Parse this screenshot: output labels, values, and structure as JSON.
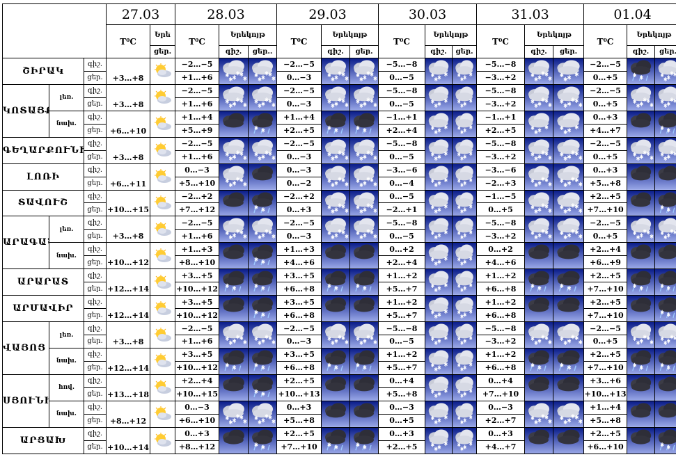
{
  "labels": {
    "temp": "T⁰C",
    "erek_short": "Երե",
    "erekoyt": "Երեկոյթ",
    "day": "ցեր.",
    "night": "գիշ.",
    "night_dot": "գիշ.",
    "day_dots": "ցեր..",
    "day_full": "ցեր."
  },
  "dates": [
    "27.03",
    "28.03",
    "29.03",
    "30.03",
    "31.03",
    "01.04"
  ],
  "icons": {
    "sunny": "sun-cloud-icon",
    "snow": "snow-cloud-icon",
    "heavy_snow": "heavy-snow-icon",
    "rain_snow": "rain-snow-icon",
    "cloud": "dark-cloud-icon"
  },
  "colors": {
    "icon_bg_top": "#0a1d8a",
    "icon_bg_bottom": "#9aa8e8"
  },
  "rows": [
    {
      "region": "ՇԻՐԱԿ",
      "sub": "",
      "d0": "+3…+8",
      "n": [
        "−2…−5",
        "−2…−5",
        "−5…−8",
        "−5…−8",
        "−2…−5"
      ],
      "d": [
        "+1…+6",
        "0…−3",
        "0…−5",
        "−3…+2",
        "0…+5"
      ],
      "ico": [
        [
          "heavy_snow",
          "heavy_snow"
        ],
        [
          "heavy_snow",
          "heavy_snow"
        ],
        [
          "snow",
          "snow"
        ],
        [
          "heavy_snow",
          "snow"
        ],
        [
          "rain_snow",
          "heavy_snow"
        ]
      ]
    },
    {
      "region": "ԿՈՏԱՅՔ",
      "sub": "լեռ.",
      "d0": "+3…+8",
      "n": [
        "−2…−5",
        "−2…−5",
        "−5…−8",
        "−5…−8",
        "−2…−5"
      ],
      "d": [
        "+1…+6",
        "0…−3",
        "0…−5",
        "−3…+2",
        "0…+5"
      ],
      "ico": [
        [
          "heavy_snow",
          "heavy_snow"
        ],
        [
          "heavy_snow",
          "heavy_snow"
        ],
        [
          "snow",
          "snow"
        ],
        [
          "heavy_snow",
          "heavy_snow"
        ],
        [
          "heavy_snow",
          "heavy_snow"
        ]
      ]
    },
    {
      "region": "",
      "sub": "նախ.",
      "d0": "+6…+10",
      "n": [
        "+1…+4",
        "+1…+4",
        "−1…+1",
        "−1…+1",
        "0…+3"
      ],
      "d": [
        "+5…+9",
        "+2…+5",
        "+2…+4",
        "+2…+5",
        "+4…+7"
      ],
      "ico": [
        [
          "cloud",
          "rain_snow"
        ],
        [
          "rain_snow",
          "rain_snow"
        ],
        [
          "snow",
          "snow"
        ],
        [
          "snow",
          "snow"
        ],
        [
          "cloud",
          "rain_snow"
        ]
      ]
    },
    {
      "region": "ԳԵՂԱՐՔՈՒՆԻՔ",
      "sub": "",
      "d0": "+3…+8",
      "n": [
        "−2…−5",
        "−2…−5",
        "−5…−8",
        "−5…−8",
        "−2…−5"
      ],
      "d": [
        "+1…+6",
        "0…−3",
        "0…−5",
        "−3…+2",
        "0…+5"
      ],
      "ico": [
        [
          "heavy_snow",
          "heavy_snow"
        ],
        [
          "heavy_snow",
          "heavy_snow"
        ],
        [
          "snow",
          "snow"
        ],
        [
          "heavy_snow",
          "heavy_snow"
        ],
        [
          "heavy_snow",
          "heavy_snow"
        ]
      ]
    },
    {
      "region": "ԼՈՌԻ",
      "sub": "",
      "d0": "+6…+11",
      "n": [
        "0…−3",
        "0…−3",
        "−3…−6",
        "−3…−6",
        "0…+3"
      ],
      "d": [
        "+5…+10",
        "0…−2",
        "0…−4",
        "−2…+3",
        "+5…+8"
      ],
      "ico": [
        [
          "heavy_snow",
          "cloud"
        ],
        [
          "heavy_snow",
          "heavy_snow"
        ],
        [
          "snow",
          "snow"
        ],
        [
          "heavy_snow",
          "heavy_snow"
        ],
        [
          "cloud",
          "cloud"
        ]
      ]
    },
    {
      "region": "ՏԱՎՈՒՇ",
      "sub": "",
      "d0": "+10…+15",
      "n": [
        "−2…+2",
        "−2…+2",
        "0…−5",
        "−1…−5",
        "+2…+5"
      ],
      "d": [
        "+7…+12",
        "0…+3",
        "−2…+1",
        "0…+5",
        "+7…+10"
      ],
      "ico": [
        [
          "cloud",
          "rain_snow"
        ],
        [
          "heavy_snow",
          "heavy_snow"
        ],
        [
          "snow",
          "snow"
        ],
        [
          "heavy_snow",
          "heavy_snow"
        ],
        [
          "cloud",
          "rain_snow"
        ]
      ]
    },
    {
      "region": "ԱՐԱԳԱԾՈՏՆ",
      "sub": "լեռ.",
      "d0": "+3…+8",
      "n": [
        "−2…−5",
        "−2…−5",
        "−5…−8",
        "−5…−8",
        "−2…−5"
      ],
      "d": [
        "+1…+6",
        "0…−3",
        "0…−5",
        "−3…+2",
        "0…+5"
      ],
      "ico": [
        [
          "heavy_snow",
          "heavy_snow"
        ],
        [
          "heavy_snow",
          "heavy_snow"
        ],
        [
          "snow",
          "snow"
        ],
        [
          "heavy_snow",
          "heavy_snow"
        ],
        [
          "heavy_snow",
          "heavy_snow"
        ]
      ]
    },
    {
      "region": "",
      "sub": "նախ.",
      "d0": "+10…+12",
      "n": [
        "+1…+3",
        "+1…+3",
        "0…+2",
        "0…+2",
        "+2…+4"
      ],
      "d": [
        "+8…+10",
        "+4…+6",
        "+2…+4",
        "+4…+6",
        "+6…+9"
      ],
      "ico": [
        [
          "cloud",
          "rain_snow"
        ],
        [
          "cloud",
          "cloud"
        ],
        [
          "snow",
          "snow"
        ],
        [
          "cloud",
          "cloud"
        ],
        [
          "cloud",
          "cloud"
        ]
      ]
    },
    {
      "region": "ԱՐԱՐԱՏ",
      "sub": "",
      "d0": "+12…+14",
      "n": [
        "+3…+5",
        "+3…+5",
        "+1…+2",
        "+1…+2",
        "+2…+5"
      ],
      "d": [
        "+10…+12",
        "+6…+8",
        "+5…+7",
        "+6…+8",
        "+7…+10"
      ],
      "ico": [
        [
          "rain_snow",
          "rain_snow"
        ],
        [
          "rain_snow",
          "rain_snow"
        ],
        [
          "snow",
          "snow"
        ],
        [
          "rain_snow",
          "rain_snow"
        ],
        [
          "rain_snow",
          "rain_snow"
        ]
      ]
    },
    {
      "region": "ԱՐՄԱՎԻՐ",
      "sub": "",
      "d0": "+12…+14",
      "n": [
        "+3…+5",
        "+3…+5",
        "+1…+2",
        "+1…+2",
        "+2…+5"
      ],
      "d": [
        "+10…+12",
        "+6…+8",
        "+5…+7",
        "+6…+8",
        "+7…+10"
      ],
      "ico": [
        [
          "cloud",
          "rain_snow"
        ],
        [
          "cloud",
          "cloud"
        ],
        [
          "snow",
          "snow"
        ],
        [
          "cloud",
          "cloud"
        ],
        [
          "cloud",
          "rain_snow"
        ]
      ]
    },
    {
      "region": "ՎԱՅՈՑ ՁՈՐ",
      "sub": "լեռ.",
      "d0": "+3…+8",
      "n": [
        "−2…−5",
        "−2…−5",
        "−5…−8",
        "−5…−8",
        "−2…−5"
      ],
      "d": [
        "+1…+6",
        "0…−3",
        "0…−5",
        "−3…+2",
        "0…+5"
      ],
      "ico": [
        [
          "heavy_snow",
          "heavy_snow"
        ],
        [
          "heavy_snow",
          "heavy_snow"
        ],
        [
          "snow",
          "snow"
        ],
        [
          "heavy_snow",
          "heavy_snow"
        ],
        [
          "heavy_snow",
          "heavy_snow"
        ]
      ]
    },
    {
      "region": "",
      "sub": "նախ.",
      "d0": "+12…+14",
      "n": [
        "+3…+5",
        "+3…+5",
        "+1…+2",
        "+1…+2",
        "+2…+5"
      ],
      "d": [
        "+10…+12",
        "+6…+8",
        "+5…+7",
        "+6…+8",
        "+7…+10"
      ],
      "ico": [
        [
          "rain_snow",
          "rain_snow"
        ],
        [
          "rain_snow",
          "rain_snow"
        ],
        [
          "snow",
          "snow"
        ],
        [
          "rain_snow",
          "rain_snow"
        ],
        [
          "rain_snow",
          "rain_snow"
        ]
      ]
    },
    {
      "region": "ՍՅՈՒՆԻՔ",
      "sub": "հով.",
      "d0": "+13…+18",
      "n": [
        "+2…+4",
        "+2…+5",
        "0…+4",
        "0…+4",
        "+3…+6"
      ],
      "d": [
        "+10…+15",
        "+10…+13",
        "+5…+8",
        "+7…+10",
        "+10…+13"
      ],
      "ico": [
        [
          "cloud",
          "rain_snow"
        ],
        [
          "cloud",
          "cloud"
        ],
        [
          "snow",
          "snow"
        ],
        [
          "cloud",
          "cloud"
        ],
        [
          "cloud",
          "cloud"
        ]
      ]
    },
    {
      "region": "",
      "sub": "նախ.",
      "d0": "+8…+12",
      "n": [
        "0…−3",
        "0…+3",
        "0…−3",
        "0…−3",
        "+1…+4"
      ],
      "d": [
        "+6…+10",
        "+5…+8",
        "0…+5",
        "+2…+7",
        "+5…+8"
      ],
      "ico": [
        [
          "heavy_snow",
          "heavy_snow"
        ],
        [
          "cloud",
          "cloud"
        ],
        [
          "snow",
          "snow"
        ],
        [
          "heavy_snow",
          "heavy_snow"
        ],
        [
          "cloud",
          "cloud"
        ]
      ]
    },
    {
      "region": "ԱՐՑԱԽ",
      "sub": "",
      "d0": "+10…+14",
      "n": [
        "0…+3",
        "+2…+5",
        "0…+3",
        "0…+3",
        "+2…+5"
      ],
      "d": [
        "+8…+12",
        "+7…+10",
        "+2…+5",
        "+4…+7",
        "+6…+10"
      ],
      "ico": [
        [
          "cloud",
          "rain_snow"
        ],
        [
          "rain_snow",
          "rain_snow"
        ],
        [
          "snow",
          "snow"
        ],
        [
          "cloud",
          "cloud"
        ],
        [
          "cloud",
          "rain_snow"
        ]
      ]
    }
  ]
}
